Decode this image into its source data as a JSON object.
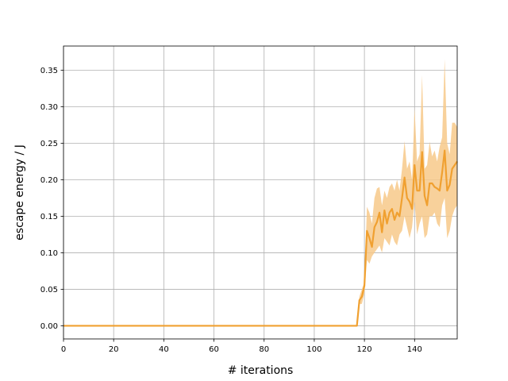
{
  "chart_data": {
    "type": "line",
    "title": "",
    "xlabel": "# iterations",
    "ylabel": "escape energy / J",
    "xlim": [
      0,
      157
    ],
    "ylim": [
      -0.018,
      0.383
    ],
    "xticks": [
      0,
      20,
      40,
      60,
      80,
      100,
      120,
      140
    ],
    "xtick_labels": [
      "0",
      "20",
      "40",
      "60",
      "80",
      "100",
      "120",
      "140"
    ],
    "yticks": [
      0.0,
      0.05,
      0.1,
      0.15,
      0.2,
      0.25,
      0.3,
      0.35
    ],
    "ytick_labels": [
      "0.00",
      "0.05",
      "0.10",
      "0.15",
      "0.20",
      "0.25",
      "0.30",
      "0.35"
    ],
    "grid": true,
    "legend": "none",
    "series": [
      {
        "color": "#f0a030",
        "band_color": "#f7c98a",
        "x": [
          0,
          117,
          118,
          119,
          120,
          121,
          122,
          123,
          124,
          125,
          126,
          127,
          128,
          129,
          130,
          131,
          132,
          133,
          134,
          135,
          136,
          137,
          138,
          139,
          140,
          141,
          142,
          143,
          144,
          145,
          146,
          147,
          148,
          149,
          150,
          151,
          152,
          153,
          154,
          155,
          156,
          157
        ],
        "values": [
          0.0,
          0.0,
          0.035,
          0.04,
          0.055,
          0.13,
          0.12,
          0.108,
          0.135,
          0.142,
          0.155,
          0.128,
          0.158,
          0.14,
          0.155,
          0.16,
          0.145,
          0.155,
          0.15,
          0.175,
          0.203,
          0.175,
          0.17,
          0.16,
          0.22,
          0.185,
          0.185,
          0.238,
          0.178,
          0.165,
          0.195,
          0.195,
          0.19,
          0.188,
          0.185,
          0.21,
          0.24,
          0.185,
          0.193,
          0.215,
          0.22,
          0.225
        ],
        "lower": [
          0.0,
          0.0,
          0.03,
          0.03,
          0.045,
          0.09,
          0.085,
          0.095,
          0.1,
          0.105,
          0.11,
          0.1,
          0.12,
          0.115,
          0.11,
          0.125,
          0.115,
          0.11,
          0.125,
          0.13,
          0.15,
          0.135,
          0.12,
          0.135,
          0.17,
          0.125,
          0.14,
          0.15,
          0.12,
          0.125,
          0.15,
          0.15,
          0.155,
          0.14,
          0.135,
          0.165,
          0.175,
          0.12,
          0.13,
          0.15,
          0.16,
          0.165
        ],
        "upper": [
          0.0,
          0.0,
          0.04,
          0.05,
          0.06,
          0.163,
          0.155,
          0.14,
          0.175,
          0.188,
          0.19,
          0.165,
          0.185,
          0.175,
          0.19,
          0.195,
          0.185,
          0.2,
          0.185,
          0.215,
          0.253,
          0.215,
          0.225,
          0.2,
          0.298,
          0.225,
          0.235,
          0.343,
          0.215,
          0.22,
          0.252,
          0.232,
          0.24,
          0.225,
          0.245,
          0.258,
          0.365,
          0.25,
          0.235,
          0.278,
          0.278,
          0.272
        ]
      }
    ]
  }
}
